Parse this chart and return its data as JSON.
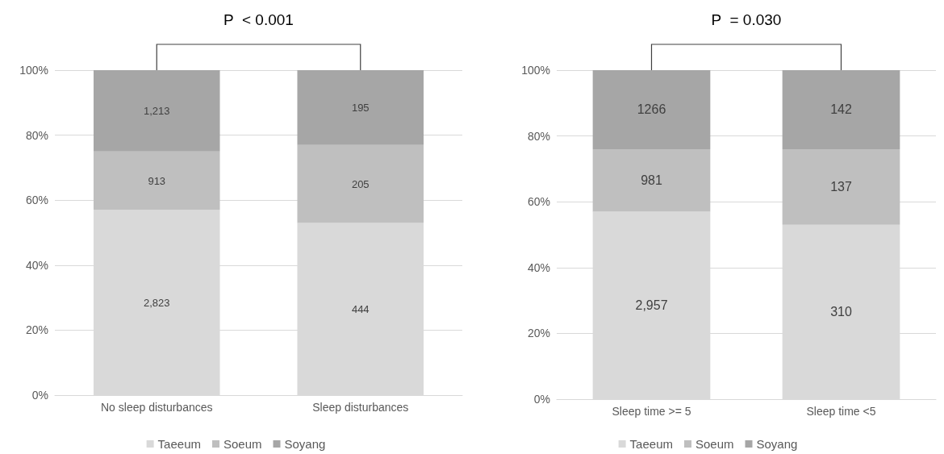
{
  "chart_data": [
    {
      "type": "bar",
      "stacked": true,
      "categories": [
        "No sleep disturbances",
        "Sleep disturbances"
      ],
      "series": [
        {
          "name": "Taeeum",
          "color": "#d9d9d9",
          "values": [
            57,
            53
          ]
        },
        {
          "name": "Soeum",
          "color": "#bfbfbf",
          "values": [
            18,
            24
          ]
        },
        {
          "name": "Soyang",
          "color": "#a6a6a6",
          "values": [
            25,
            23
          ]
        }
      ],
      "ylim": [
        0,
        100
      ],
      "yticks": [
        {
          "value": 0,
          "label": "0%"
        },
        {
          "value": 20,
          "label": "20%"
        },
        {
          "value": 40,
          "label": "40%"
        },
        {
          "value": 60,
          "label": "60%"
        },
        {
          "value": 80,
          "label": "80%"
        },
        {
          "value": 100,
          "label": "100%"
        }
      ],
      "grid": "y",
      "legend": "bottom",
      "annotations": [
        "P  < 0.001",
        "2,823",
        "913",
        "1,213",
        "444",
        "205",
        "195"
      ]
    },
    {
      "type": "bar",
      "stacked": true,
      "categories": [
        "Sleep time >= 5",
        "Sleep time <5"
      ],
      "series": [
        {
          "name": "Taeeum",
          "color": "#d9d9d9",
          "values": [
            57,
            53
          ]
        },
        {
          "name": "Soeum",
          "color": "#bfbfbf",
          "values": [
            19,
            23
          ]
        },
        {
          "name": "Soyang",
          "color": "#a6a6a6",
          "values": [
            24,
            24
          ]
        }
      ],
      "ylim": [
        0,
        100
      ],
      "yticks": [
        {
          "value": 0,
          "label": "0%"
        },
        {
          "value": 20,
          "label": "20%"
        },
        {
          "value": 40,
          "label": "40%"
        },
        {
          "value": 60,
          "label": "60%"
        },
        {
          "value": 80,
          "label": "80%"
        },
        {
          "value": 100,
          "label": "100%"
        }
      ],
      "grid": "y",
      "legend": "bottom",
      "annotations": [
        "P  = 0.030",
        "2,957",
        "981",
        "1266",
        "310",
        "137",
        "142"
      ]
    }
  ]
}
